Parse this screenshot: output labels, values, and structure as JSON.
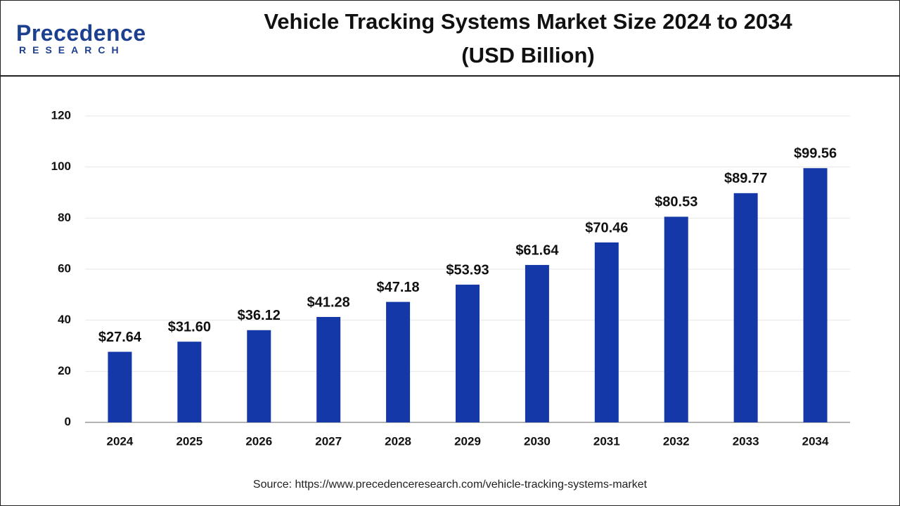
{
  "logo": {
    "name": "Precedence",
    "tagline": "RESEARCH"
  },
  "source": "Source: https://www.precedenceresearch.com/vehicle-tracking-systems-market",
  "chart_data": {
    "type": "bar",
    "title": "Vehicle Tracking Systems Market Size 2024 to 2034",
    "subtitle": "(USD Billion)",
    "categories": [
      "2024",
      "2025",
      "2026",
      "2027",
      "2028",
      "2029",
      "2030",
      "2031",
      "2032",
      "2033",
      "2034"
    ],
    "values": [
      27.64,
      31.6,
      36.12,
      41.28,
      47.18,
      53.93,
      61.64,
      70.46,
      80.53,
      89.77,
      99.56
    ],
    "value_labels": [
      "$27.64",
      "$31.60",
      "$36.12",
      "$41.28",
      "$47.18",
      "$53.93",
      "$61.64",
      "$70.46",
      "$80.53",
      "$89.77",
      "$99.56"
    ],
    "color": "#1538a8",
    "ylim": [
      0,
      120
    ],
    "yticks": [
      0,
      20,
      40,
      60,
      80,
      100,
      120
    ],
    "grid": true
  }
}
